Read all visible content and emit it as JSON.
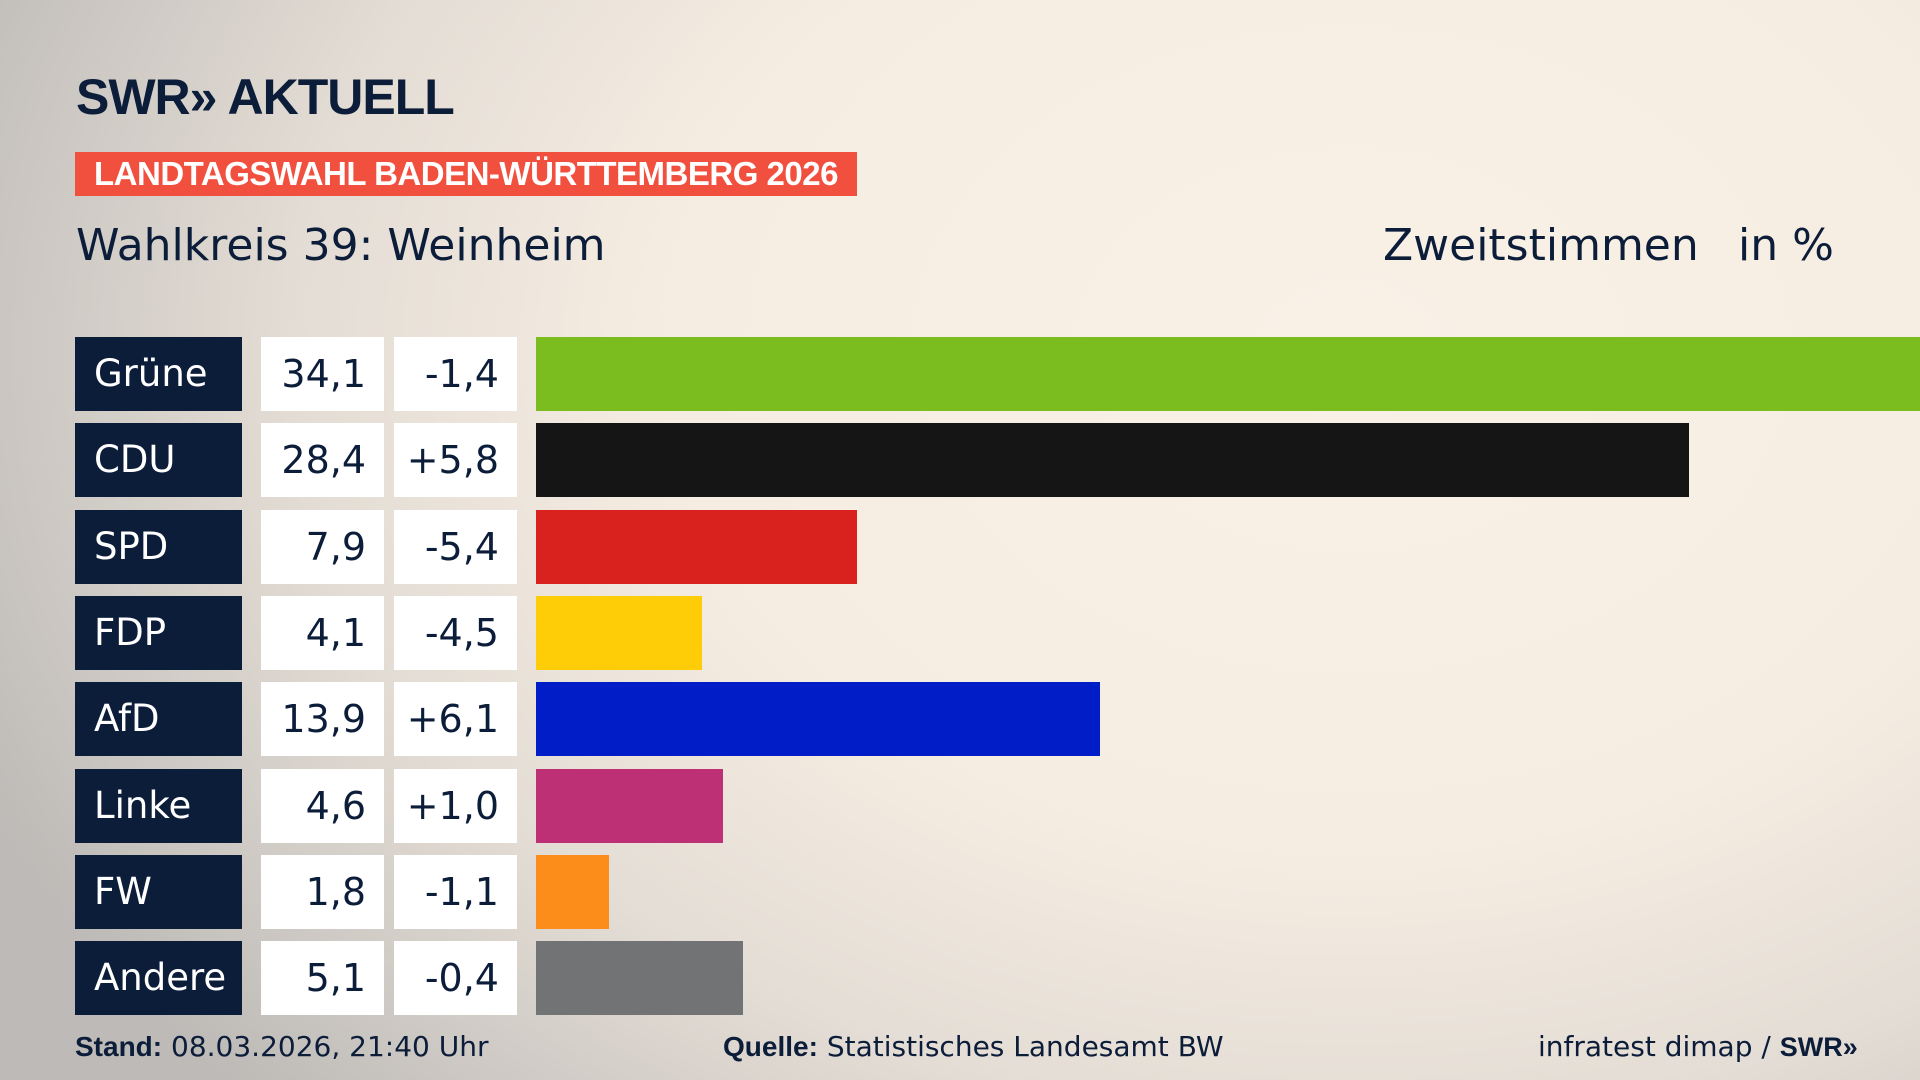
{
  "brand": {
    "logo": "SWR» AKTUELL",
    "footer_logo": "SWR»"
  },
  "banner": "LANDTAGSWAHL BADEN-WÜRTTEMBERG 2026",
  "subtitle": "Wahlkreis 39: Weinheim",
  "measure": "Zweitstimmen",
  "unit": "in %",
  "chart_data": {
    "type": "bar",
    "orientation": "horizontal",
    "title": "Wahlkreis 39: Weinheim",
    "categories": [
      "Grüne",
      "CDU",
      "SPD",
      "FDP",
      "AfD",
      "Linke",
      "FW",
      "Andere"
    ],
    "values": [
      34.1,
      28.4,
      7.9,
      4.1,
      13.9,
      4.6,
      1.8,
      5.1
    ],
    "values_label": [
      "34,1",
      "28,4",
      "7,9",
      "4,1",
      "13,9",
      "4,6",
      "1,8",
      "5,1"
    ],
    "changes": [
      "-1,4",
      "+5,8",
      "-5,4",
      "-4,5",
      "+6,1",
      "+1,0",
      "-1,1",
      "-0,4"
    ],
    "colors": [
      "#7bbd1e",
      "#151515",
      "#d9211e",
      "#ffcd07",
      "#001dc8",
      "#be3075",
      "#fd8d1a",
      "#727375"
    ],
    "xlim": [
      0,
      34.1
    ]
  },
  "footer": {
    "stand_label": "Stand:",
    "stand_value": "08.03.2026, 21:40 Uhr",
    "quelle_label": "Quelle:",
    "quelle_value": "Statistisches Landesamt BW",
    "credit": "infratest dimap /"
  }
}
